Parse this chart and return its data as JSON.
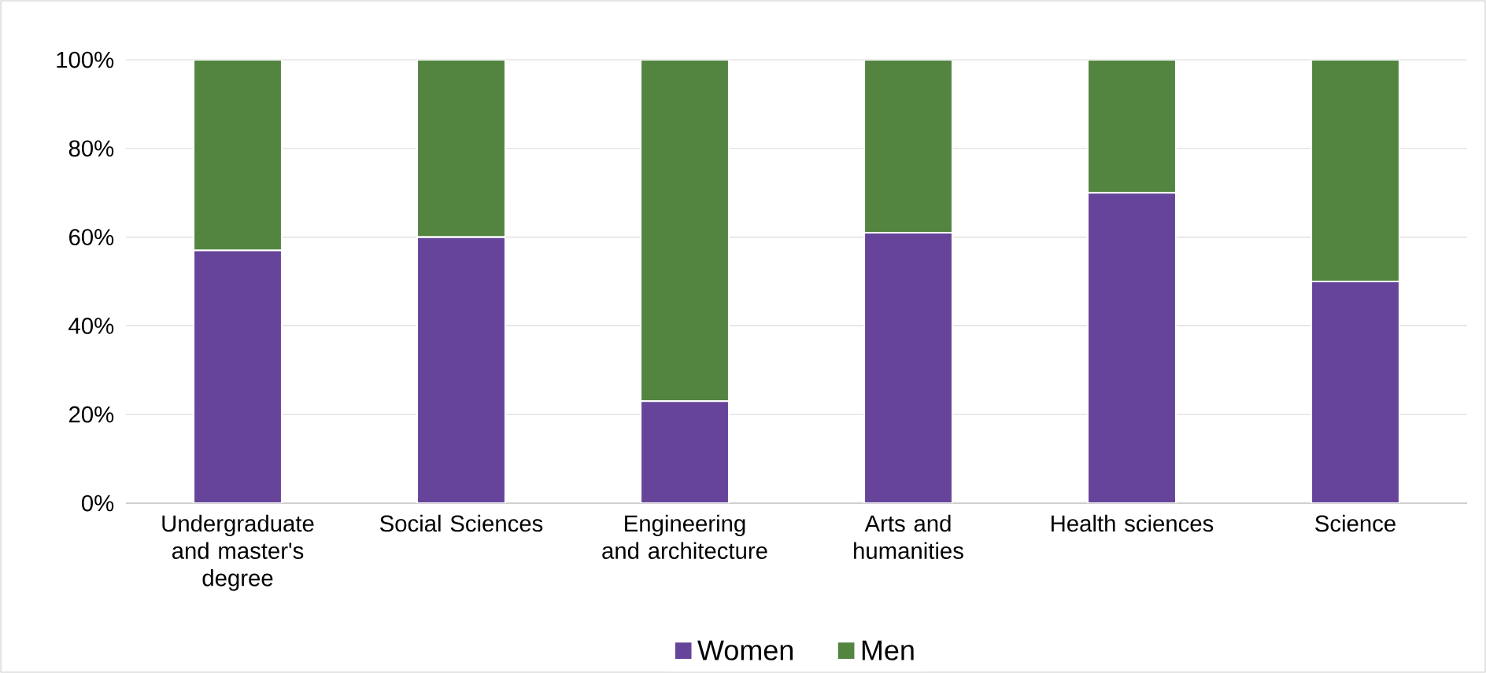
{
  "chart_data": {
    "type": "bar",
    "stacked": true,
    "categories": [
      "Undergraduate and master's degree",
      "Social Sciences",
      "Engineering and architecture",
      "Arts and humanities",
      "Health sciences",
      "Science"
    ],
    "series": [
      {
        "name": "Women",
        "color": "#66449a",
        "values": [
          57,
          60,
          23,
          61,
          70,
          50
        ]
      },
      {
        "name": "Men",
        "color": "#538541",
        "values": [
          43,
          40,
          77,
          39,
          30,
          50
        ]
      }
    ],
    "ylim": [
      0,
      100
    ],
    "yticks": [
      {
        "value": 0,
        "label": "0%"
      },
      {
        "value": 20,
        "label": "20%"
      },
      {
        "value": 40,
        "label": "40%"
      },
      {
        "value": 60,
        "label": "60%"
      },
      {
        "value": 80,
        "label": "80%"
      },
      {
        "value": 100,
        "label": "100%"
      }
    ],
    "grid": "y",
    "legend": "bottom"
  }
}
